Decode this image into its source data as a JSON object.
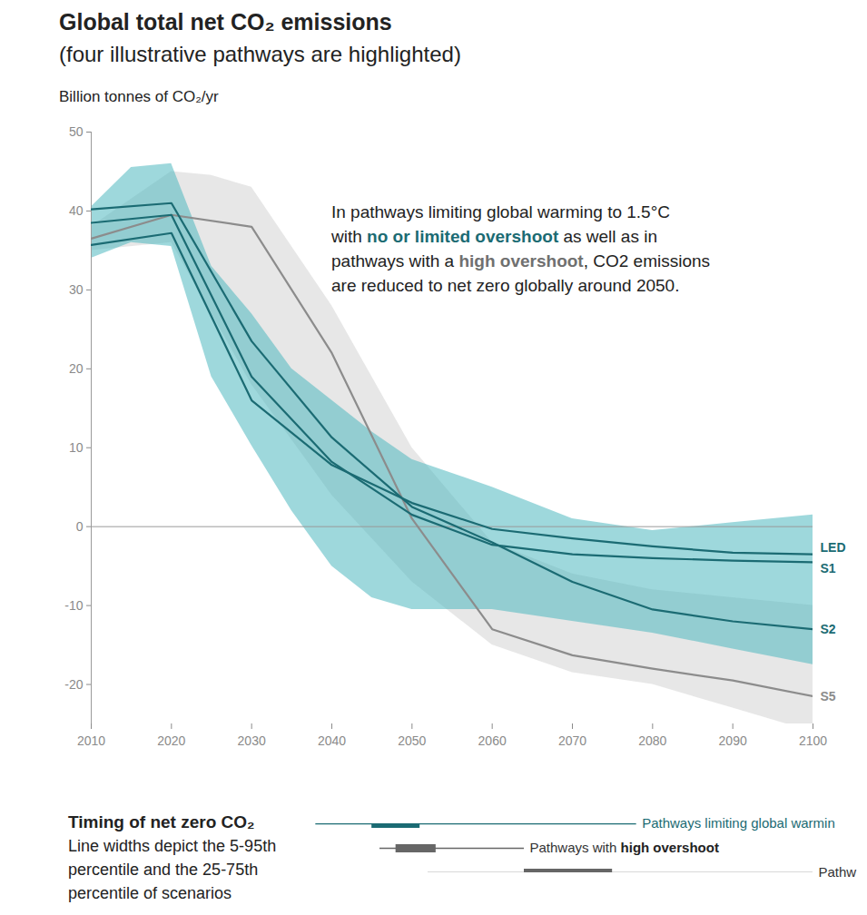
{
  "chart_data": [
    {
      "type": "line",
      "title": "Global total net CO₂ emissions",
      "subtitle": "(four illustrative pathways are highlighted)",
      "y_label": "Billion tonnes of CO₂/yr",
      "annotation": {
        "lines": [
          "In pathways limiting global warming to 1.5°C",
          "with no or limited overshoot as well as in",
          "pathways with a high overshoot, CO2 emissions",
          "are reduced to net zero globally around 2050."
        ],
        "highlights": [
          {
            "text": "no or limited overshoot",
            "color": "#1b6b73"
          },
          {
            "text": "high overshoot",
            "color": "#707070"
          }
        ]
      },
      "x": [
        2010,
        2020,
        2030,
        2040,
        2050,
        2060,
        2070,
        2080,
        2090,
        2100
      ],
      "series": [
        {
          "name": "LED",
          "color": "#1b6b73",
          "values": [
            35.7,
            37.2,
            16,
            7.8,
            3,
            -0.3,
            -1.5,
            -2.5,
            -3.3,
            -3.5
          ]
        },
        {
          "name": "S1",
          "color": "#1b6b73",
          "values": [
            38.5,
            39.5,
            19,
            8.2,
            1.5,
            -2.3,
            -3.5,
            -4,
            -4.3,
            -4.5
          ]
        },
        {
          "name": "S2",
          "color": "#1b6b73",
          "values": [
            40.2,
            41,
            23.5,
            11.3,
            2.5,
            -2,
            -7,
            -10.5,
            -12,
            -13
          ]
        },
        {
          "name": "S5",
          "color": "#8c8c8c",
          "values": [
            36.5,
            39.5,
            38,
            22,
            1,
            -13,
            -16.3,
            -18,
            -19.5,
            -21.5
          ]
        }
      ],
      "bands": [
        {
          "color": "#d4d4d4",
          "x": [
            2010,
            2020,
            2025,
            2030,
            2040,
            2050,
            2060,
            2070,
            2080,
            2090,
            2100
          ],
          "lower": [
            35,
            36,
            27,
            18,
            4,
            -7,
            -15,
            -18.5,
            -20,
            -23,
            -26
          ],
          "upper": [
            38,
            45,
            44.5,
            43,
            28,
            10,
            -2,
            -6,
            -8,
            -9,
            -10
          ]
        },
        {
          "color": "#4fb8c0",
          "x": [
            2010,
            2015,
            2020,
            2025,
            2030,
            2035,
            2040,
            2045,
            2050,
            2060,
            2070,
            2080,
            2090,
            2100
          ],
          "lower": [
            34,
            36,
            35.5,
            19,
            10.3,
            2,
            -5,
            -9,
            -10.5,
            -10.5,
            -12,
            -13.5,
            -15.5,
            -17.5
          ],
          "upper": [
            40.5,
            45.5,
            46,
            33,
            27,
            20,
            16,
            12,
            8.5,
            5,
            1,
            -0.5,
            0.5,
            1.5
          ]
        }
      ],
      "xlim": [
        2010,
        2100
      ],
      "xticks": [
        2010,
        2020,
        2030,
        2040,
        2050,
        2060,
        2070,
        2080,
        2090,
        2100
      ],
      "ylim": [
        -25,
        50
      ],
      "yticks": [
        -20,
        -10,
        0,
        10,
        20,
        30,
        40,
        50
      ],
      "grid": false
    },
    {
      "type": "range",
      "title": "Timing of net zero CO₂",
      "caption": [
        "Line widths depict the 5-95th",
        "percentile and the 25-75th",
        "percentile of scenarios"
      ],
      "categories": [
        "Pathways limiting global warmin",
        "Pathways with high overshoot",
        "Pathw"
      ],
      "p5": [
        2038,
        2046,
        2052
      ],
      "p25": [
        2045,
        2048,
        2064
      ],
      "p75": [
        2051,
        2053,
        2075
      ],
      "p95": [
        2078,
        2064,
        2100
      ],
      "colors": [
        "#1b6b73",
        "#666666",
        "#666666"
      ],
      "highlights": [
        {
          "text": "high overshoot",
          "color": "#222222"
        }
      ],
      "xlim": [
        2010,
        2100
      ],
      "tick_labels": false
    }
  ]
}
